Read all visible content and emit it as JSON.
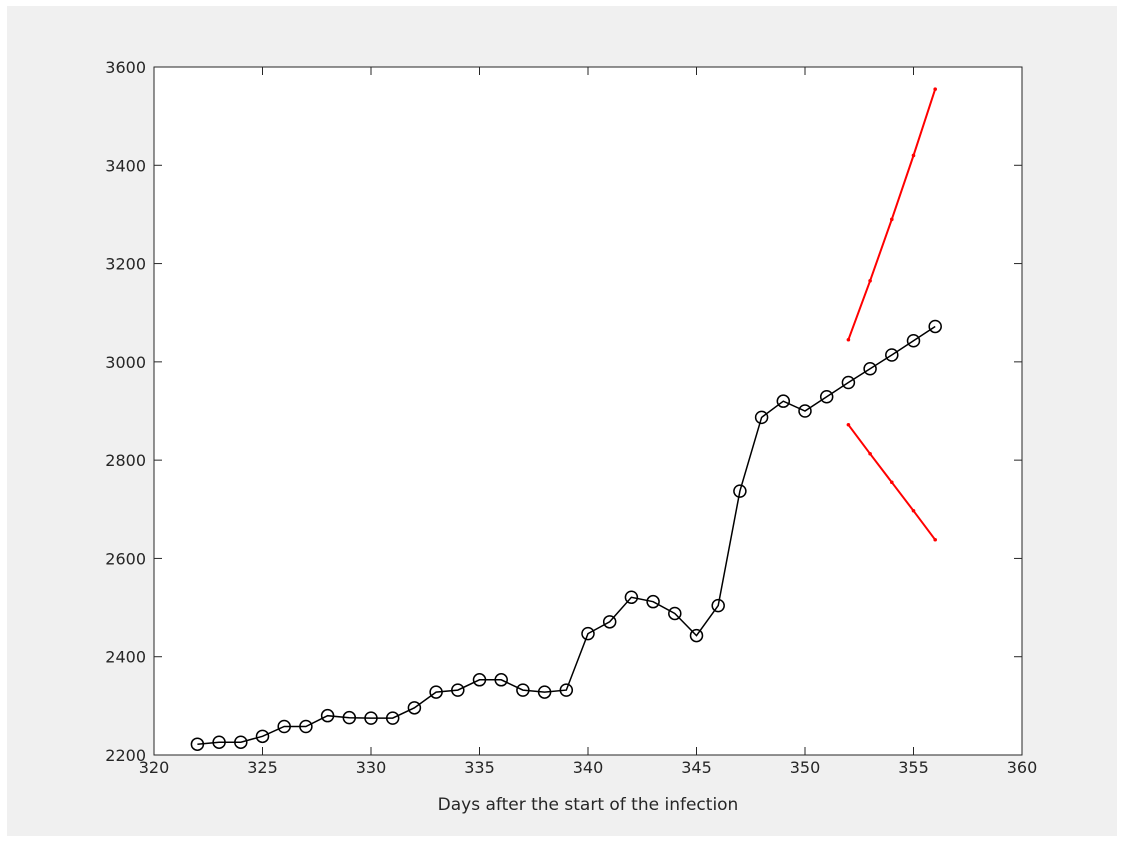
{
  "chart_data": {
    "type": "line",
    "title": "",
    "xlabel": "Days after the start of the infection",
    "ylabel": "",
    "xlim": [
      320,
      360
    ],
    "ylim": [
      2200,
      3600
    ],
    "xticks": [
      320,
      325,
      330,
      335,
      340,
      345,
      350,
      355,
      360
    ],
    "yticks": [
      2200,
      2400,
      2600,
      2800,
      3000,
      3200,
      3400,
      3600
    ],
    "grid": false,
    "legend": "none",
    "series": [
      {
        "color": "#000000",
        "marker": "circle",
        "x": [
          322,
          323,
          324,
          325,
          326,
          327,
          328,
          329,
          330,
          331,
          332,
          333,
          334,
          335,
          336,
          337,
          338,
          339,
          340,
          341,
          342,
          343,
          344,
          345,
          346,
          347,
          348,
          349,
          350,
          351,
          352,
          353,
          354,
          355,
          356
        ],
        "values": [
          2222,
          2226,
          2226,
          2238,
          2258,
          2258,
          2280,
          2276,
          2275,
          2275,
          2296,
          2328,
          2332,
          2353,
          2353,
          2332,
          2328,
          2332,
          2447,
          2471,
          2521,
          2512,
          2488,
          2443,
          2504,
          2737,
          2887,
          2920,
          2900,
          2929,
          2958,
          2986,
          3014,
          3043,
          3072
        ]
      },
      {
        "color": "#ff0000",
        "marker": "dot",
        "x": [
          352,
          353,
          354,
          355,
          356
        ],
        "values": [
          3045,
          3165,
          3290,
          3420,
          3555
        ]
      },
      {
        "color": "#ff0000",
        "marker": "dot",
        "x": [
          352,
          353,
          354,
          355,
          356
        ],
        "values": [
          2872,
          2813,
          2755,
          2697,
          2638
        ]
      }
    ]
  }
}
